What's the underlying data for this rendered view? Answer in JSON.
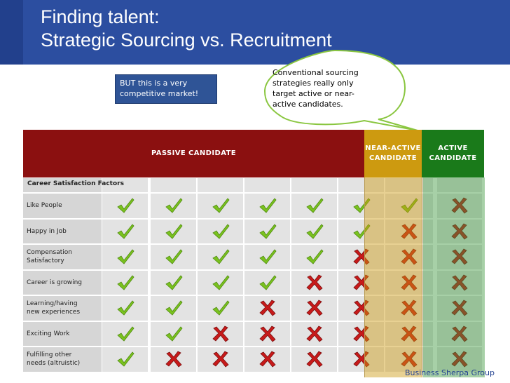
{
  "title": {
    "line1": "Finding talent:",
    "line2": "Strategic Sourcing vs. Recruitment"
  },
  "callout": {
    "line1": "BUT this is a very",
    "line2": "competitive market!"
  },
  "bubble": {
    "line1": "Conventional sourcing",
    "line2": "strategies really only",
    "line3": "target active or near-",
    "line4": "active candidates."
  },
  "headers": {
    "passive": "PASSIVE CANDIDATE",
    "near_line1": "NEAR-ACTIVE",
    "near_line2": "CANDIDATE",
    "active_line1": "ACTIVE",
    "active_line2": "CANDIDATE"
  },
  "table": {
    "section_label": "Career Satisfaction Factors",
    "rows": [
      {
        "label_line1": "Like People",
        "label_line2": "",
        "marks": [
          "check",
          "check",
          "check",
          "check",
          "check",
          "check",
          "check",
          "cross"
        ]
      },
      {
        "label_line1": "Happy in Job",
        "label_line2": "",
        "marks": [
          "check",
          "check",
          "check",
          "check",
          "check",
          "check",
          "cross",
          "cross"
        ]
      },
      {
        "label_line1": "Compensation",
        "label_line2": "Satisfactory",
        "marks": [
          "check",
          "check",
          "check",
          "check",
          "check",
          "cross",
          "cross",
          "cross"
        ]
      },
      {
        "label_line1": "Career is growing",
        "label_line2": "",
        "marks": [
          "check",
          "check",
          "check",
          "check",
          "cross",
          "cross",
          "cross",
          "cross"
        ]
      },
      {
        "label_line1": "Learning/having",
        "label_line2": "new experiences",
        "marks": [
          "check",
          "check",
          "check",
          "cross",
          "cross",
          "cross",
          "cross",
          "cross"
        ]
      },
      {
        "label_line1": "Exciting Work",
        "label_line2": "",
        "marks": [
          "check",
          "check",
          "cross",
          "cross",
          "cross",
          "cross",
          "cross",
          "cross"
        ]
      },
      {
        "label_line1": "Fulfilling other",
        "label_line2": "needs (altruistic)",
        "marks": [
          "check",
          "cross",
          "cross",
          "cross",
          "cross",
          "cross",
          "cross",
          "cross"
        ]
      }
    ]
  },
  "icons": {
    "check": "check-icon",
    "cross": "cross-icon"
  },
  "colors": {
    "title_band": "#2c4ea0",
    "passive": "#8b1010",
    "near_active": "#cd9a10",
    "active": "#1a7a1a",
    "check": "#7ac21f",
    "cross": "#c81a1a"
  },
  "footer": "Business Sherpa Group"
}
